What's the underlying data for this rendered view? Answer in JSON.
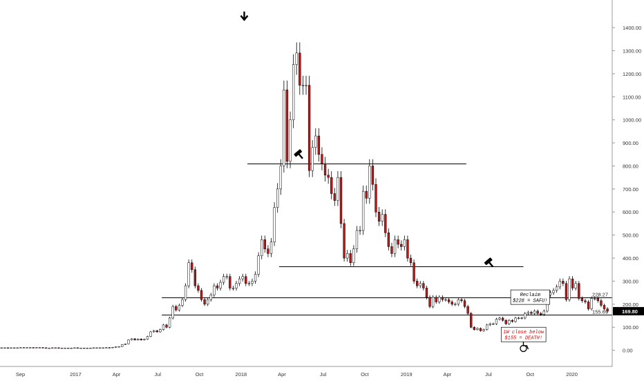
{
  "chart_data": {
    "type": "candlestick",
    "timeframe": "1W",
    "price_axis": {
      "range": [
        -70,
        1520
      ],
      "ticks": [
        "0.00",
        "100.00",
        "200.00",
        "300.00",
        "400.00",
        "500.00",
        "600.00",
        "700.00",
        "800.00",
        "900.00",
        "1000.00",
        "1100.00",
        "1200.00",
        "1300.00",
        "1400.00"
      ],
      "side": "right"
    },
    "time_axis": {
      "range": [
        "2016-07-18",
        "2020-03-30"
      ],
      "ticks": [
        {
          "label": "Sep",
          "date": "2016-09-01"
        },
        {
          "label": "2017",
          "date": "2017-01-01"
        },
        {
          "label": "Apr",
          "date": "2017-04-01"
        },
        {
          "label": "Jul",
          "date": "2017-07-01"
        },
        {
          "label": "Oct",
          "date": "2017-10-01"
        },
        {
          "label": "2018",
          "date": "2018-01-01"
        },
        {
          "label": "Apr",
          "date": "2018-04-01"
        },
        {
          "label": "Jul",
          "date": "2018-07-01"
        },
        {
          "label": "Oct",
          "date": "2018-10-01"
        },
        {
          "label": "2019",
          "date": "2019-01-01"
        },
        {
          "label": "Apr",
          "date": "2019-04-01"
        },
        {
          "label": "Jul",
          "date": "2019-07-01"
        },
        {
          "label": "Oct",
          "date": "2019-10-01"
        },
        {
          "label": "2020",
          "date": "2020-01-01"
        }
      ]
    },
    "colors": {
      "up_fill": "#ffffff",
      "up_border": "#000000",
      "down_fill": "#b71c1c",
      "down_border": "#000000",
      "wick": "#000000",
      "line": "#000000",
      "note_red": "#e00000",
      "current_price_bg": "#000000",
      "current_price_text": "#ffffff",
      "axis_text": "#333333"
    },
    "candles": {
      "start_date": "2016-07-18",
      "interval_days": 7,
      "open": [
        11,
        11,
        11,
        10,
        11,
        11,
        11,
        12,
        12,
        12,
        12,
        11,
        12,
        12,
        11,
        10,
        10,
        11,
        11,
        10,
        10,
        10,
        10,
        10,
        11,
        10,
        10,
        10,
        10,
        10,
        11,
        11,
        11,
        11,
        12,
        11,
        13,
        15,
        16,
        25,
        28,
        45,
        50,
        45,
        49,
        45,
        48,
        60,
        80,
        85,
        80,
        90,
        110,
        100,
        140,
        190,
        175,
        195,
        220,
        280,
        380,
        350,
        280,
        260,
        220,
        200,
        220,
        240,
        280,
        270,
        295,
        320,
        320,
        270,
        270,
        290,
        310,
        320,
        290,
        290,
        300,
        330,
        410,
        480,
        440,
        420,
        470,
        620,
        700,
        800,
        1130,
        820,
        1000,
        1240,
        1290,
        1150,
        1150,
        1150,
        780,
        880,
        930,
        850,
        810,
        760,
        750,
        680,
        650,
        750,
        550,
        400,
        420,
        380,
        440,
        520,
        520,
        690,
        660,
        800,
        720,
        600,
        560,
        590,
        510,
        450,
        420,
        480,
        460,
        450,
        480,
        400,
        380,
        300,
        280,
        290,
        270,
        230,
        190,
        230,
        210,
        230,
        220,
        220,
        210,
        200,
        200,
        220,
        215,
        190,
        160,
        100,
        90,
        95,
        85,
        90,
        110,
        115,
        115,
        135,
        140,
        130,
        115,
        130,
        125,
        140,
        140,
        140,
        160,
        165,
        160,
        170,
        160,
        155,
        170,
        240,
        250,
        260,
        275,
        300,
        290,
        220,
        310,
        270,
        290,
        225,
        215,
        210,
        180,
        225,
        225,
        215,
        195,
        180
      ],
      "close": [
        11,
        11,
        10,
        11,
        11,
        11,
        12,
        12,
        12,
        12,
        11,
        12,
        12,
        11,
        10,
        10,
        11,
        11,
        10,
        10,
        10,
        10,
        10,
        11,
        10,
        10,
        10,
        10,
        10,
        11,
        11,
        11,
        11,
        12,
        11,
        13,
        15,
        16,
        25,
        28,
        45,
        50,
        45,
        49,
        45,
        48,
        60,
        80,
        85,
        80,
        90,
        110,
        100,
        140,
        190,
        175,
        195,
        220,
        280,
        380,
        350,
        280,
        260,
        220,
        200,
        220,
        240,
        280,
        270,
        295,
        320,
        320,
        270,
        270,
        290,
        310,
        320,
        290,
        290,
        300,
        330,
        410,
        480,
        440,
        420,
        470,
        620,
        700,
        800,
        1130,
        820,
        1000,
        1240,
        1290,
        1150,
        1150,
        1150,
        780,
        880,
        930,
        850,
        810,
        760,
        750,
        680,
        650,
        750,
        550,
        400,
        420,
        380,
        440,
        520,
        520,
        690,
        660,
        800,
        720,
        600,
        560,
        590,
        510,
        450,
        420,
        480,
        460,
        450,
        480,
        400,
        380,
        300,
        280,
        290,
        270,
        230,
        190,
        230,
        210,
        230,
        220,
        220,
        210,
        200,
        200,
        220,
        215,
        190,
        160,
        100,
        90,
        95,
        85,
        90,
        110,
        115,
        115,
        135,
        140,
        130,
        115,
        130,
        125,
        140,
        140,
        140,
        160,
        165,
        160,
        170,
        160,
        155,
        170,
        240,
        250,
        260,
        275,
        300,
        290,
        220,
        310,
        270,
        290,
        225,
        215,
        210,
        180,
        225,
        225,
        215,
        195,
        180,
        169.8
      ]
    },
    "levels": [
      {
        "price": 810,
        "from": "2018-01-15",
        "to": "2019-05-13"
      },
      {
        "price": 365,
        "from": "2018-03-26",
        "to": "2019-09-16"
      },
      {
        "price": 228.27,
        "from": "2017-07-10",
        "to": "2020-03-30",
        "label": "228.27"
      },
      {
        "price": 155.69,
        "from": "2017-07-10",
        "to": "2020-03-30",
        "label": "155.69"
      }
    ],
    "current_price": {
      "value": 169.8,
      "label": "169.80"
    },
    "annotations": [
      {
        "kind": "arrow-down",
        "date": "2018-01-08",
        "price": 1470
      },
      {
        "kind": "gavel",
        "date": "2018-05-07",
        "price": 855
      },
      {
        "kind": "gavel",
        "date": "2019-07-01",
        "price": 385
      },
      {
        "kind": "wheelchair",
        "date": "2019-09-16",
        "price": 20
      }
    ],
    "notes": [
      {
        "lines": [
          "Reclaim",
          "$228 = SAFU!"
        ],
        "color": "#000000",
        "date": "2019-08-19",
        "price": 262
      },
      {
        "lines": [
          "1W close below",
          "$155 = DEATH!"
        ],
        "color": "#e00000",
        "date": "2019-07-29",
        "price": 100
      }
    ]
  }
}
